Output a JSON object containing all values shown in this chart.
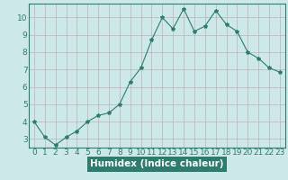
{
  "x": [
    0,
    1,
    2,
    3,
    4,
    5,
    6,
    7,
    8,
    9,
    10,
    11,
    12,
    13,
    14,
    15,
    16,
    17,
    18,
    19,
    20,
    21,
    22,
    23
  ],
  "y": [
    4.0,
    3.1,
    2.65,
    3.1,
    3.45,
    4.0,
    4.35,
    4.5,
    5.0,
    6.3,
    7.1,
    8.7,
    10.0,
    9.35,
    10.5,
    9.2,
    9.5,
    10.4,
    9.6,
    9.2,
    8.0,
    7.65,
    7.1,
    6.85
  ],
  "line_color": "#2d7d6e",
  "marker": "*",
  "marker_size": 3,
  "bg_color": "#cce8e8",
  "grid_color": "#c0b0b0",
  "grid_color_minor": "#d8c8c8",
  "xlabel": "Humidex (Indice chaleur)",
  "xlim": [
    -0.5,
    23.5
  ],
  "ylim": [
    2.5,
    10.8
  ],
  "yticks": [
    3,
    4,
    5,
    6,
    7,
    8,
    9,
    10
  ],
  "xticks": [
    0,
    1,
    2,
    3,
    4,
    5,
    6,
    7,
    8,
    9,
    10,
    11,
    12,
    13,
    14,
    15,
    16,
    17,
    18,
    19,
    20,
    21,
    22,
    23
  ],
  "xlabel_fontsize": 7.5,
  "tick_fontsize": 6.5,
  "axis_bg": "#cce8e8",
  "label_bg": "#2d7d6e",
  "label_text_color": "#ffffff",
  "spine_color": "#2d7d6e"
}
